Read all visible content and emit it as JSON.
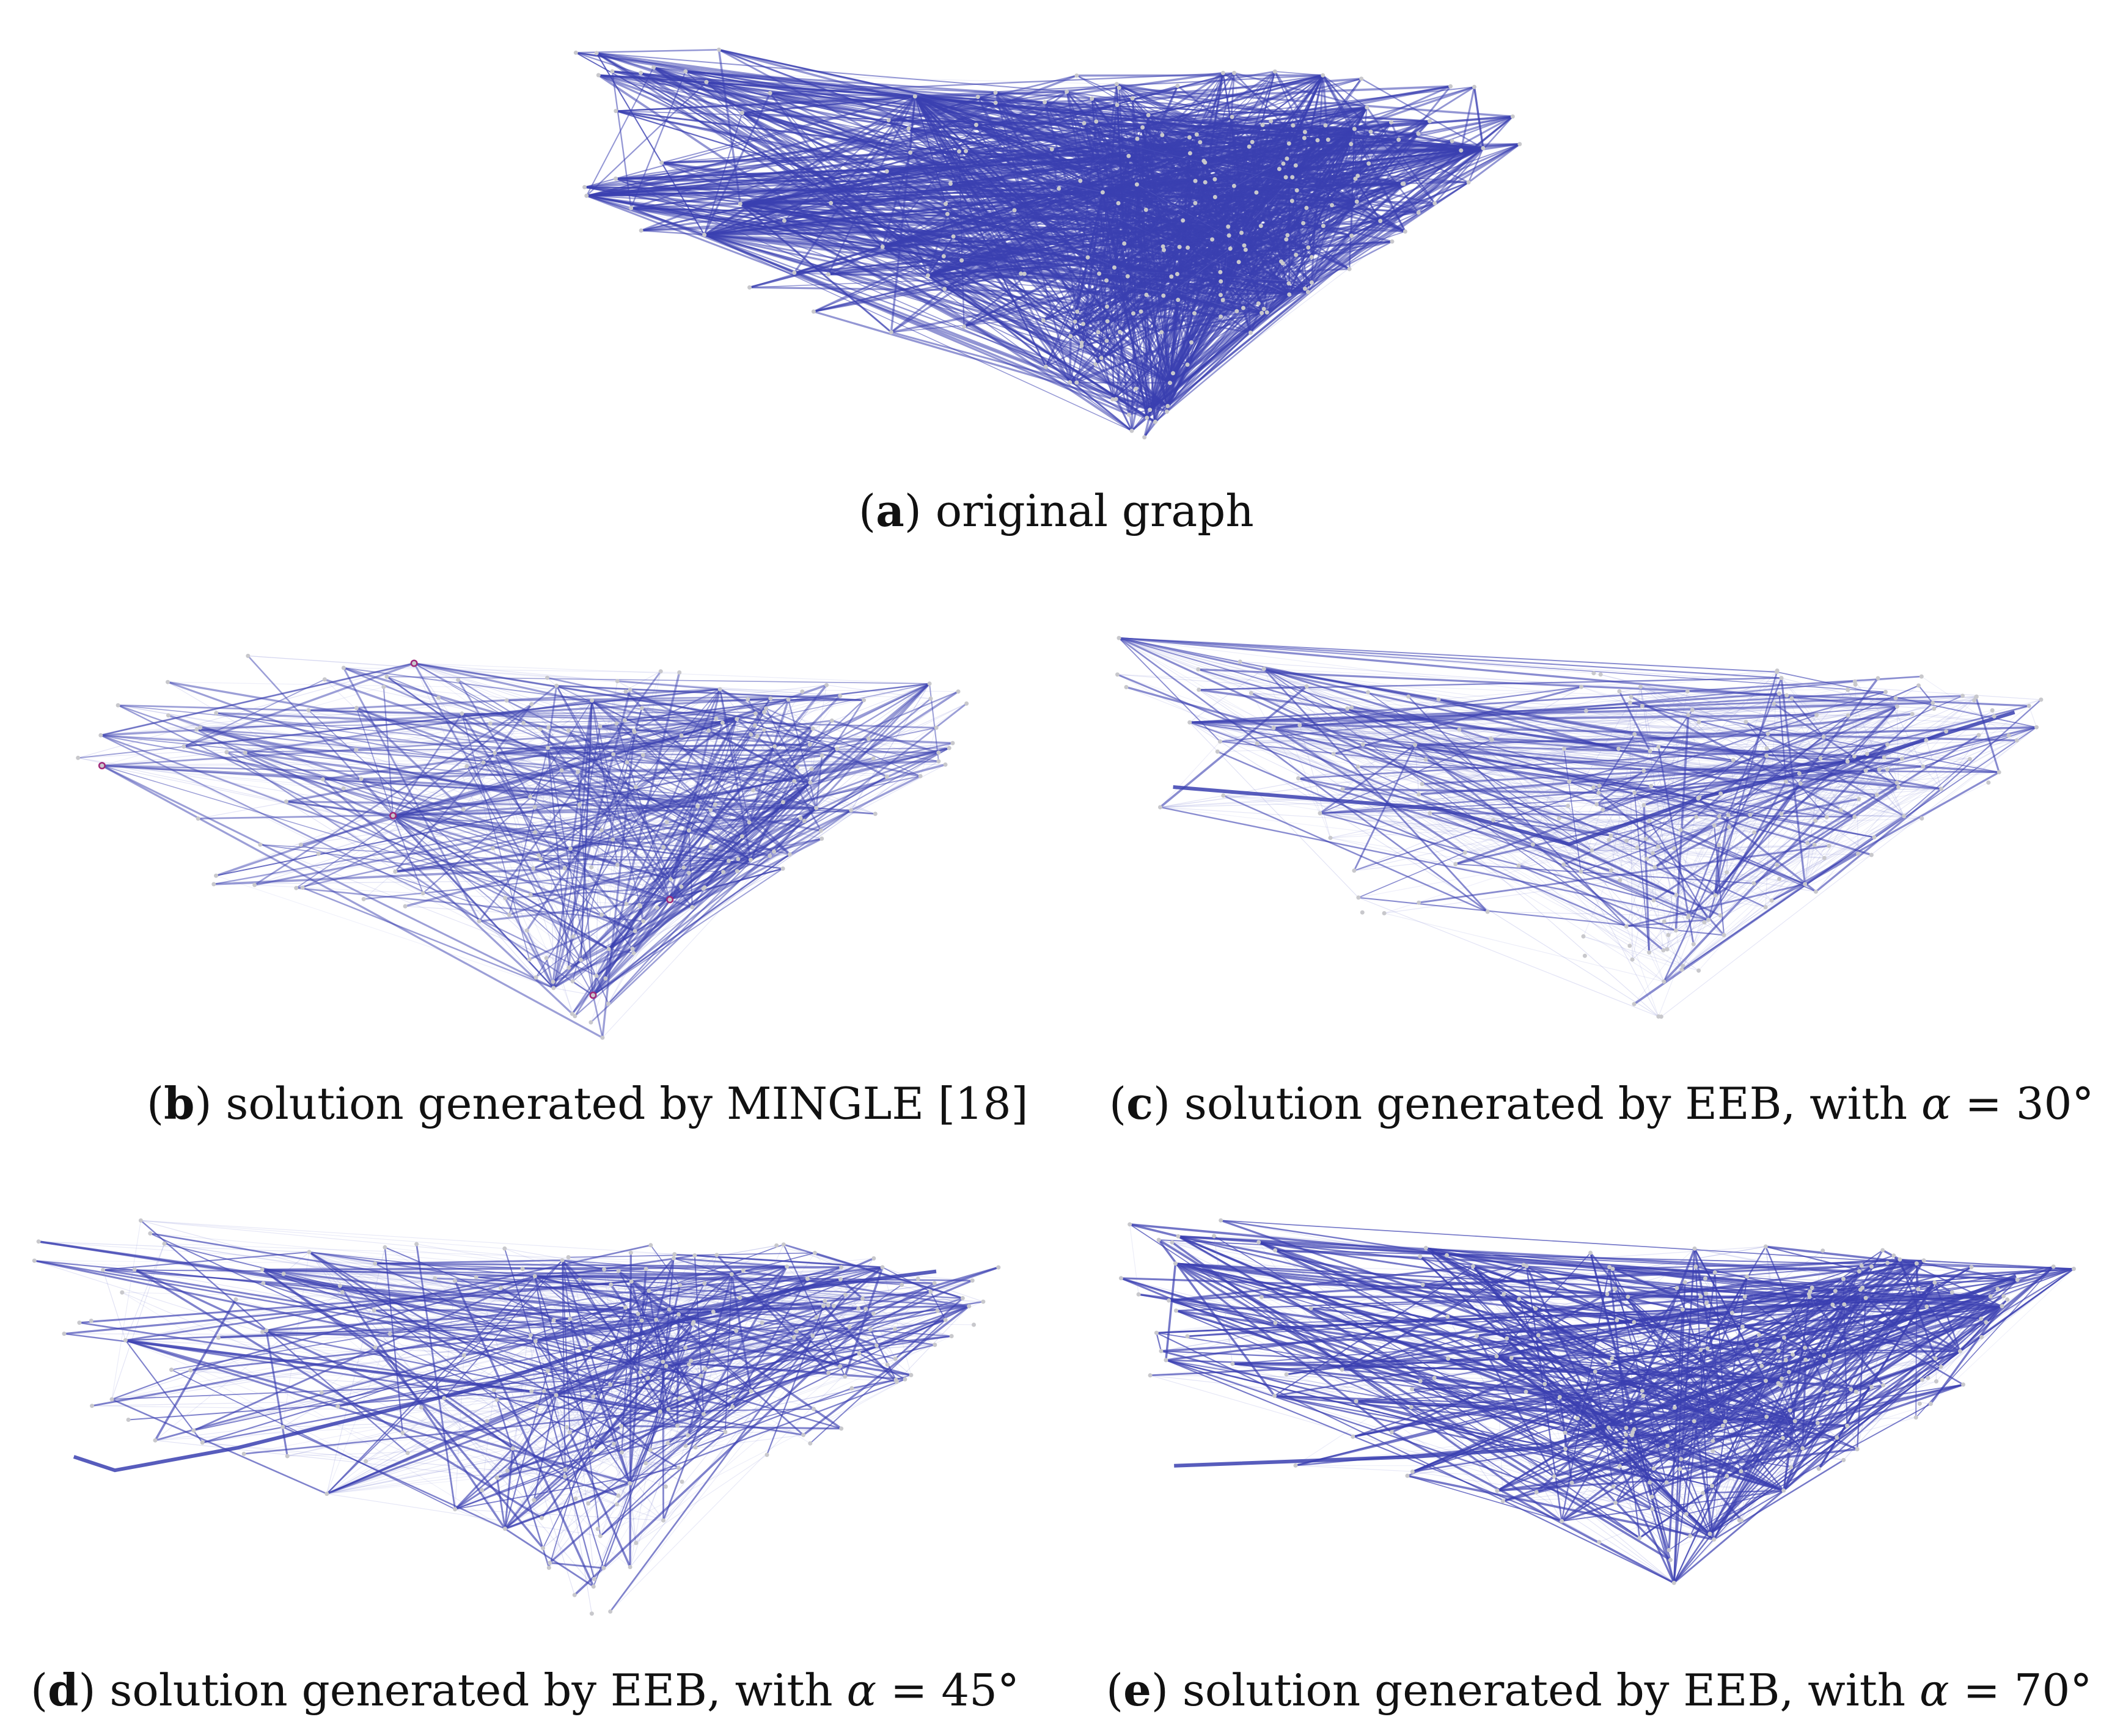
{
  "figure": {
    "panels": [
      {
        "letter": "a",
        "caption": "original graph",
        "symbol": "",
        "alpha": ""
      },
      {
        "letter": "b",
        "caption": "solution generated by MINGLE [18]",
        "symbol": "",
        "alpha": ""
      },
      {
        "letter": "c",
        "caption": "solution generated by EEB, with",
        "symbol": "α",
        "alpha": "= 30°"
      },
      {
        "letter": "d",
        "caption": "solution generated by EEB, with",
        "symbol": "α",
        "alpha": "= 45°"
      },
      {
        "letter": "e",
        "caption": "solution generated by EEB, with",
        "symbol": "α",
        "alpha": "= 70°"
      }
    ],
    "colors": {
      "edge": "#3a3fb0",
      "edge_faint": "#8a8fd6",
      "node": "#c8c8cc",
      "highlight": "#a0287a",
      "background": "#ffffff"
    }
  }
}
